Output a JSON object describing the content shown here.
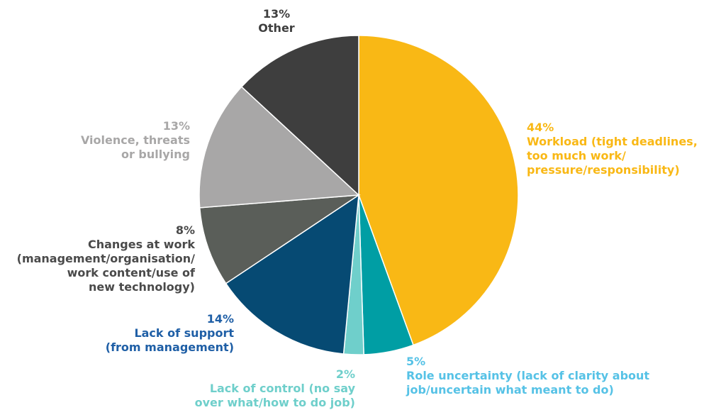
{
  "chart_data": {
    "type": "pie",
    "slices": [
      {
        "label_lines": [
          "Workload (tight deadlines,",
          "too much work/",
          "pressure/responsibility)"
        ],
        "pct_text": "44%",
        "value": 44,
        "color": "#F9B815"
      },
      {
        "label_lines": [
          "Role uncertainty (lack of clarity about",
          "job/uncertain what meant to do)"
        ],
        "pct_text": "5%",
        "value": 5,
        "color": "#009EA4"
      },
      {
        "label_lines": [
          "Lack of control (no say",
          "over what/how to do job)"
        ],
        "pct_text": "2%",
        "value": 2,
        "color": "#6FCFCB"
      },
      {
        "label_lines": [
          "Lack of support",
          "(from management)"
        ],
        "pct_text": "14%",
        "value": 14,
        "color": "#064A73"
      },
      {
        "label_lines": [
          "Changes at work",
          "(management/organisation/",
          "work content/use of",
          "new technology)"
        ],
        "pct_text": "8%",
        "value": 8,
        "color": "#5A5E59"
      },
      {
        "label_lines": [
          "Violence, threats",
          "or bullying"
        ],
        "pct_text": "13%",
        "value": 13,
        "color": "#A8A7A7"
      },
      {
        "label_lines": [
          "Other"
        ],
        "pct_text": "13%",
        "value": 13,
        "color": "#3E3E3E"
      }
    ],
    "label_colors": [
      "#F9B815",
      "#56C2E6",
      "#6FCFCB",
      "#1F5FA6",
      "#4A4A4A",
      "#A8A7A7",
      "#3E3E3E"
    ]
  }
}
